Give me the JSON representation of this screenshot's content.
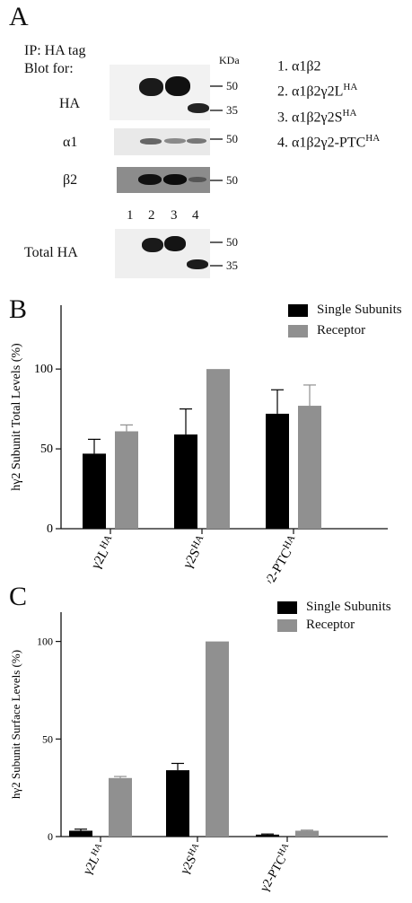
{
  "panel_a": {
    "letter": "A",
    "ip_label": "IP: HA tag",
    "blot_label": "Blot for:",
    "kda_label": "KDa",
    "row_labels": [
      "HA",
      "α1",
      "β2",
      "Total HA"
    ],
    "lane_numbers": [
      "1",
      "2",
      "3",
      "4"
    ],
    "markers": {
      "ha": [
        "50",
        "35"
      ],
      "a1": [
        "50"
      ],
      "b2": [
        "50"
      ],
      "total": [
        "50",
        "35"
      ]
    },
    "constructs": [
      {
        "num": "1.",
        "base": "α1β2",
        "sup": ""
      },
      {
        "num": "2.",
        "base": "α1β2γ2L",
        "sup": "HA"
      },
      {
        "num": "3.",
        "base": "α1β2γ2S",
        "sup": "HA"
      },
      {
        "num": "4.",
        "base": "α1β2γ2-PTC",
        "sup": "HA"
      }
    ]
  },
  "colors": {
    "single": "#000000",
    "receptor": "#909090"
  },
  "chart_data": [
    {
      "type": "bar",
      "panel": "B",
      "categories": [
        "γ2L^HA",
        "γ2S^HA",
        "γ2-PTC^HA"
      ],
      "category_parts": [
        [
          "γ2L",
          "HA"
        ],
        [
          "γ2S",
          "HA"
        ],
        [
          "γ2-PTC",
          "HA"
        ]
      ],
      "series": [
        {
          "name": "Single Subunits",
          "values": [
            47,
            59,
            72
          ],
          "errors": [
            9,
            16,
            15
          ]
        },
        {
          "name": "Receptor",
          "values": [
            61,
            100,
            77
          ],
          "errors": [
            4,
            0,
            13
          ]
        }
      ],
      "ylabel": "hγ2 Subunit Total Levels (%)",
      "ylim": [
        0,
        140
      ],
      "yticks": [
        0,
        50,
        100
      ],
      "legend": "top-right"
    },
    {
      "type": "bar",
      "panel": "C",
      "categories": [
        "γ2L^HA",
        "γ2S^HA",
        "γ2-PTC^HA"
      ],
      "category_parts": [
        [
          "γ2L",
          "HA"
        ],
        [
          "γ2S",
          "HA"
        ],
        [
          "γ2-PTC",
          "HA"
        ]
      ],
      "series": [
        {
          "name": "Single Subunits",
          "values": [
            3,
            34,
            1
          ],
          "errors": [
            0.8,
            3.5,
            0.3
          ]
        },
        {
          "name": "Receptor",
          "values": [
            30,
            100,
            3
          ],
          "errors": [
            0.8,
            0,
            0.3
          ]
        }
      ],
      "ylabel": "hγ2 Subunit Surface Levels (%)",
      "ylim": [
        0,
        115
      ],
      "yticks": [
        0,
        50,
        100
      ],
      "legend": "top-right"
    }
  ]
}
